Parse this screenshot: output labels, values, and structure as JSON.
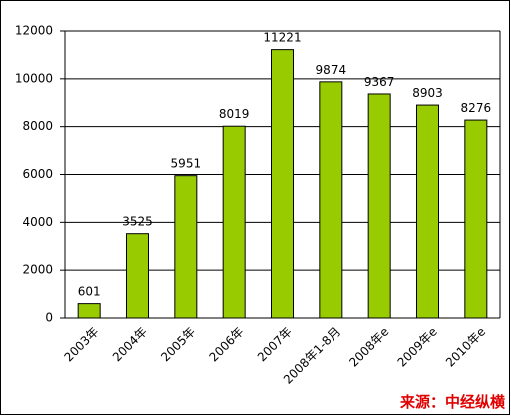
{
  "chart_data": {
    "type": "bar",
    "categories": [
      "2003年",
      "2004年",
      "2005年",
      "2006年",
      "2007年",
      "2008年1-8月",
      "2008年e",
      "2009年e",
      "2010年e"
    ],
    "values": [
      601,
      3525,
      5951,
      8019,
      11221,
      9874,
      9367,
      8903,
      8276
    ],
    "color": "#99cc00",
    "ylim": [
      0,
      12000
    ],
    "yticks": [
      0,
      2000,
      4000,
      6000,
      8000,
      10000,
      12000
    ],
    "grid": true,
    "source": "来源：中经纵横"
  }
}
